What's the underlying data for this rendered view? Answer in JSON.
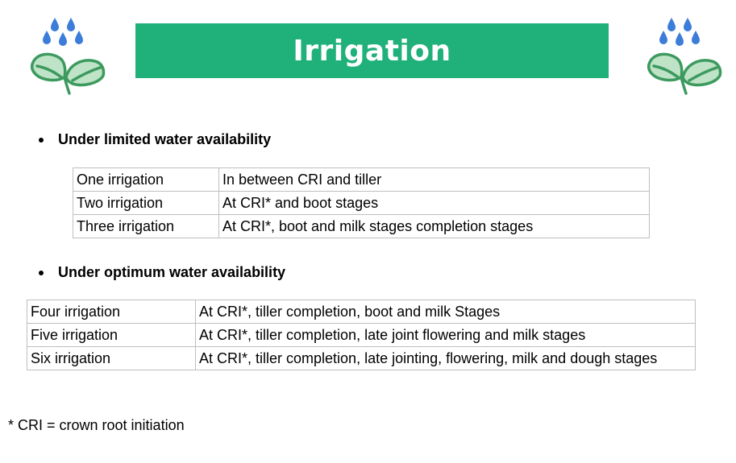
{
  "header": {
    "title": "Irrigation",
    "icons": [
      "plant-rain-icon",
      "plant-rain-icon"
    ],
    "accent_color": "#20b07a",
    "icon_drop_color": "#3b7dd8",
    "icon_leaf_color": "#bfe3c6"
  },
  "sections": [
    {
      "heading": "Under limited water availability",
      "rows": [
        {
          "label": "One irrigation",
          "description": "In between CRI and tiller"
        },
        {
          "label": "Two irrigation",
          "description": "At CRI* and boot stages"
        },
        {
          "label": "Three irrigation",
          "description": "At CRI*, boot and milk stages completion stages"
        }
      ]
    },
    {
      "heading": "Under optimum water availability",
      "rows": [
        {
          "label": "Four irrigation",
          "description": "At CRI*, tiller completion, boot and milk Stages"
        },
        {
          "label": "Five irrigation",
          "description": "At CRI*, tiller completion, late joint flowering and milk stages"
        },
        {
          "label": "Six irrigation",
          "description": "At CRI*, tiller completion, late jointing, flowering, milk and dough stages"
        }
      ]
    }
  ],
  "footnote": "* CRI = crown root initiation"
}
